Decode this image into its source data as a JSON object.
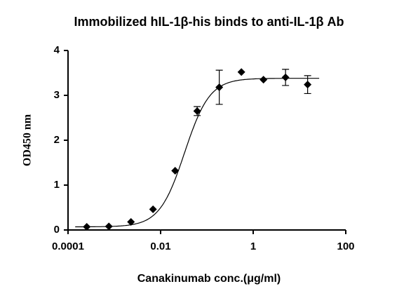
{
  "chart_data": {
    "type": "scatter",
    "title": "Immobilized hIL-1β-his binds to anti-IL-1β Ab",
    "x_label": "Canakinumab conc.(μg/ml)",
    "y_label": "OD450 nm",
    "x": [
      0.000254,
      0.000762,
      0.00229,
      0.00686,
      0.0206,
      0.0617,
      0.185,
      0.556,
      1.667,
      5,
      15
    ],
    "series": [
      {
        "color": "#000000",
        "values": [
          0.07,
          0.08,
          0.18,
          0.46,
          1.32,
          2.65,
          3.18,
          3.52,
          3.35,
          3.4,
          3.24
        ],
        "errors": [
          0,
          0,
          0,
          0,
          0,
          0.1,
          0.38,
          0,
          0,
          0.18,
          0.2
        ]
      }
    ],
    "fit": {
      "bottom": 0.07,
      "top": 3.38,
      "ec50": 0.033,
      "hill": 1.6
    },
    "x_scale": "log",
    "xlim": [
      0.0001,
      100
    ],
    "xticks": [
      0.0001,
      0.01,
      1,
      100
    ],
    "ylim": [
      0,
      4
    ],
    "yticks": [
      0,
      1,
      2,
      3,
      4
    ]
  }
}
